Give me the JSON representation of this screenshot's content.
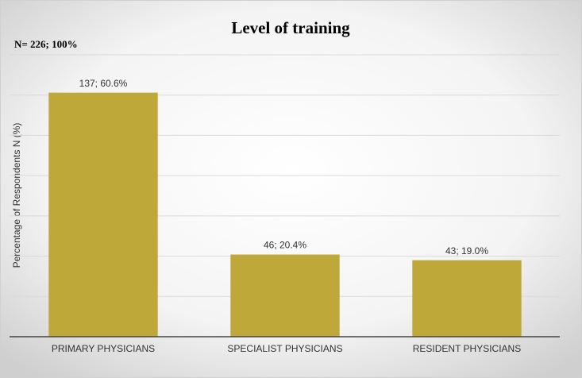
{
  "chart_data": {
    "type": "bar",
    "title": "Level of training",
    "annotation": "N= 226; 100%",
    "y_label": "Percentage of Respondents N (%)",
    "categories": [
      "PRIMARY PHYSICIANS",
      "SPECIALIST PHYSICIANS",
      "RESIDENT PHYSICIANS"
    ],
    "values": [
      60.6,
      20.4,
      19.0
    ],
    "value_labels": [
      "137; 60.6%",
      "46; 20.4%",
      "43; 19.0%"
    ],
    "color": "#bfa83a",
    "ylim": [
      0,
      70
    ],
    "yticks": [
      0,
      10,
      20,
      30,
      40,
      50,
      60,
      70
    ],
    "grid": true
  }
}
